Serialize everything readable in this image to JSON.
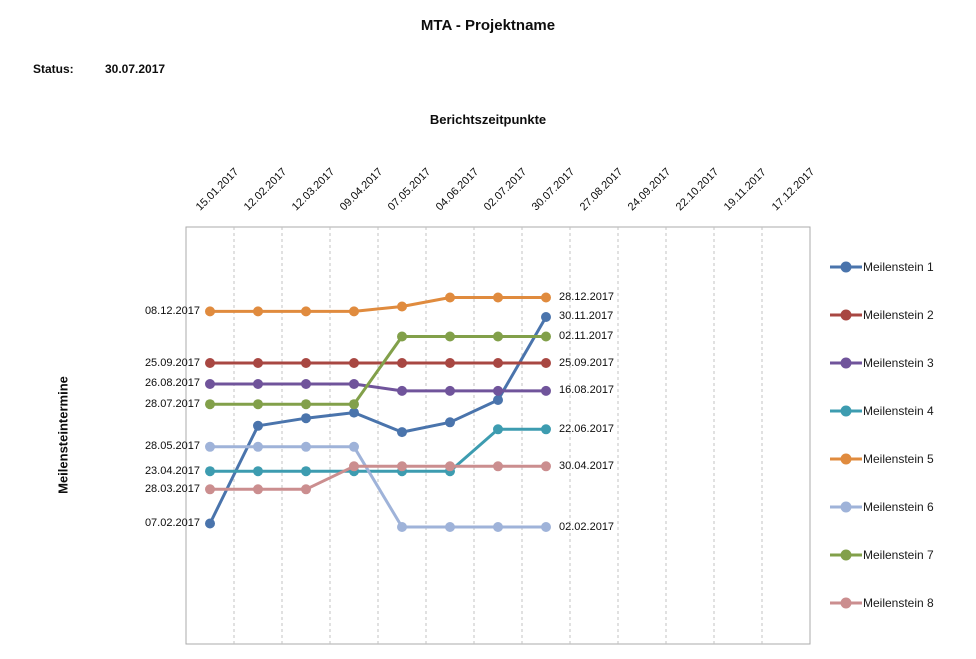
{
  "title": "MTA - Projektname",
  "status": {
    "label": "Status:",
    "value": "30.07.2017"
  },
  "x_axis_title": "Berichtszeitpunkte",
  "y_axis_title": "Meilensteintermine",
  "chart_data": {
    "type": "line",
    "x_categories": [
      "15.01.2017",
      "12.02.2017",
      "12.03.2017",
      "09.04.2017",
      "07.05.2017",
      "04.06.2017",
      "02.07.2017",
      "30.07.2017",
      "27.08.2017",
      "24.09.2017",
      "22.10.2017",
      "19.11.2017",
      "17.12.2017"
    ],
    "reported_categories_count": 8,
    "grid": "vertical-dashed",
    "legend_position": "right",
    "series": [
      {
        "name": "Meilenstein 1",
        "color": "#4A74AC",
        "values": [
          "07.02.2017",
          "27.06.2017",
          "08.07.2017",
          "16.07.2017",
          "18.06.2017",
          "02.07.2017",
          "03.08.2017",
          "30.11.2017"
        ]
      },
      {
        "name": "Meilenstein 2",
        "color": "#A84742",
        "values": [
          "25.09.2017",
          "25.09.2017",
          "25.09.2017",
          "25.09.2017",
          "25.09.2017",
          "25.09.2017",
          "25.09.2017",
          "25.09.2017"
        ]
      },
      {
        "name": "Meilenstein 3",
        "color": "#70549B",
        "values": [
          "26.08.2017",
          "26.08.2017",
          "26.08.2017",
          "26.08.2017",
          "16.08.2017",
          "16.08.2017",
          "16.08.2017",
          "16.08.2017"
        ]
      },
      {
        "name": "Meilenstein 4",
        "color": "#3D9CB0",
        "values": [
          "23.04.2017",
          "23.04.2017",
          "23.04.2017",
          "23.04.2017",
          "23.04.2017",
          "23.04.2017",
          "22.06.2017",
          "22.06.2017"
        ]
      },
      {
        "name": "Meilenstein 5",
        "color": "#E08B3E",
        "values": [
          "08.12.2017",
          "08.12.2017",
          "08.12.2017",
          "08.12.2017",
          "15.12.2017",
          "28.12.2017",
          "28.12.2017",
          "28.12.2017"
        ]
      },
      {
        "name": "Meilenstein 6",
        "color": "#9FB3D9",
        "values": [
          "28.05.2017",
          "28.05.2017",
          "28.05.2017",
          "28.05.2017",
          "02.02.2017",
          "02.02.2017",
          "02.02.2017",
          "02.02.2017"
        ]
      },
      {
        "name": "Meilenstein 7",
        "color": "#82A04A",
        "values": [
          "28.07.2017",
          "28.07.2017",
          "28.07.2017",
          "28.07.2017",
          "02.11.2017",
          "02.11.2017",
          "02.11.2017",
          "02.11.2017"
        ]
      },
      {
        "name": "Meilenstein 8",
        "color": "#CB8E8F",
        "values": [
          "28.03.2017",
          "28.03.2017",
          "28.03.2017",
          "30.04.2017",
          "30.04.2017",
          "30.04.2017",
          "30.04.2017",
          "30.04.2017"
        ]
      }
    ],
    "start_value_labels": [
      "08.12.2017",
      "25.09.2017",
      "26.08.2017",
      "28.07.2017",
      "28.05.2017",
      "23.04.2017",
      "28.03.2017",
      "07.02.2017"
    ],
    "end_value_labels": [
      "28.12.2017",
      "30.11.2017",
      "02.11.2017",
      "25.09.2017",
      "16.08.2017",
      "22.06.2017",
      "30.04.2017",
      "02.02.2017"
    ]
  }
}
